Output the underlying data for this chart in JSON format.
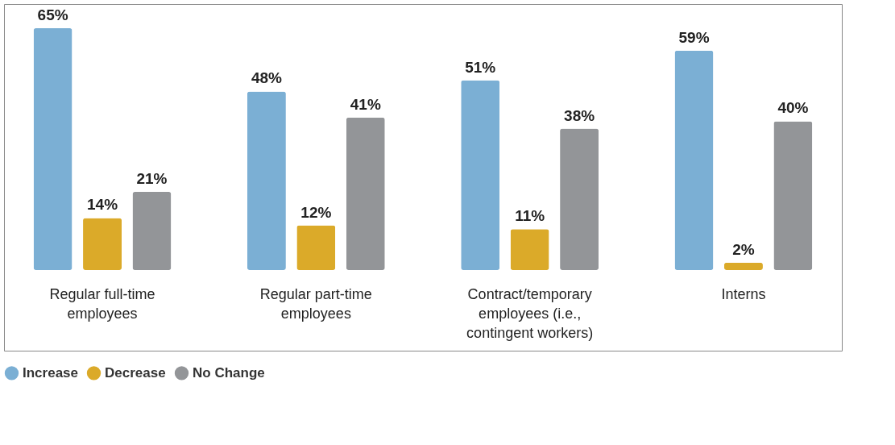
{
  "chart_data": {
    "type": "bar",
    "categories": [
      "Regular full-time employees",
      "Regular part-time employees",
      "Contract/temporary employees (i.e., contingent workers)",
      "Interns"
    ],
    "series": [
      {
        "name": "Increase",
        "color": "#7bafd4",
        "values": [
          65,
          48,
          51,
          59
        ],
        "value_labels": [
          "65%",
          "48%",
          "51%",
          "59%"
        ]
      },
      {
        "name": "Decrease",
        "color": "#dbaa29",
        "values": [
          14,
          12,
          11,
          2
        ],
        "value_labels": [
          "14%",
          "12%",
          "11%",
          "2%"
        ]
      },
      {
        "name": "No Change",
        "color": "#939598",
        "values": [
          21,
          41,
          38,
          40
        ],
        "value_labels": [
          "21%",
          "41%",
          "38%",
          "40%"
        ]
      }
    ],
    "legend": "bottom"
  }
}
